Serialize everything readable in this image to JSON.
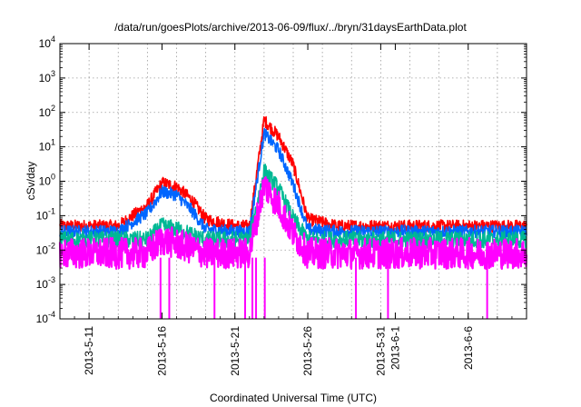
{
  "chart_data": {
    "type": "line",
    "title": "/data/run/goesPlots/archive/2013-06-09/flux/../bryn/31daysEarthData.plot",
    "xlabel": "Coordinated Universal Time (UTC)",
    "ylabel": "cSv/day",
    "y_scale": "log",
    "ylim": [
      0.0001,
      10000
    ],
    "y_ticks": [
      {
        "base": "10",
        "exp": "-4",
        "value": 0.0001
      },
      {
        "base": "10",
        "exp": "-3",
        "value": 0.001
      },
      {
        "base": "10",
        "exp": "-2",
        "value": 0.01
      },
      {
        "base": "10",
        "exp": "-1",
        "value": 0.1
      },
      {
        "base": "10",
        "exp": "0",
        "value": 1
      },
      {
        "base": "10",
        "exp": "1",
        "value": 10
      },
      {
        "base": "10",
        "exp": "2",
        "value": 100
      },
      {
        "base": "10",
        "exp": "3",
        "value": 1000
      },
      {
        "base": "10",
        "exp": "4",
        "value": 10000
      }
    ],
    "xlim": [
      "2013-05-09",
      "2013-06-10"
    ],
    "x_ticks": [
      "2013-5-11",
      "2013-5-16",
      "2013-5-21",
      "2013-5-26",
      "2013-5-31",
      "2013-6-1",
      "2013-6-6"
    ],
    "grid": true,
    "legend": "none",
    "series": [
      {
        "color": "#ff0000",
        "x": [
          "2013-05-09",
          "2013-05-13",
          "2013-05-15",
          "2013-05-16",
          "2013-05-17",
          "2013-05-18",
          "2013-05-19",
          "2013-05-21",
          "2013-05-22",
          "2013-05-23",
          "2013-05-24",
          "2013-05-25",
          "2013-05-26",
          "2013-05-28",
          "2013-06-01",
          "2013-06-06",
          "2013-06-10"
        ],
        "values": [
          0.05,
          0.05,
          0.2,
          0.9,
          0.7,
          0.3,
          0.08,
          0.05,
          0.05,
          60,
          20,
          3,
          0.08,
          0.05,
          0.05,
          0.05,
          0.05
        ]
      },
      {
        "color": "#0066ff",
        "x": [
          "2013-05-09",
          "2013-05-13",
          "2013-05-15",
          "2013-05-16",
          "2013-05-17",
          "2013-05-18",
          "2013-05-19",
          "2013-05-21",
          "2013-05-22",
          "2013-05-23",
          "2013-05-24",
          "2013-05-25",
          "2013-05-26",
          "2013-05-28",
          "2013-06-01",
          "2013-06-06",
          "2013-06-10"
        ],
        "values": [
          0.035,
          0.035,
          0.12,
          0.5,
          0.4,
          0.15,
          0.04,
          0.035,
          0.035,
          25,
          8,
          0.8,
          0.04,
          0.035,
          0.035,
          0.035,
          0.035
        ]
      },
      {
        "color": "#00b894",
        "x": [
          "2013-05-09",
          "2013-05-15",
          "2013-05-16",
          "2013-05-17",
          "2013-05-19",
          "2013-05-22",
          "2013-05-23",
          "2013-05-24",
          "2013-05-25",
          "2013-05-26",
          "2013-05-28",
          "2013-06-10"
        ],
        "values": [
          0.02,
          0.02,
          0.05,
          0.04,
          0.02,
          0.02,
          2,
          0.6,
          0.08,
          0.02,
          0.02,
          0.02
        ]
      },
      {
        "color": "#ff00ff",
        "x": [
          "2013-05-09",
          "2013-05-15",
          "2013-05-16",
          "2013-05-17",
          "2013-05-19",
          "2013-05-22",
          "2013-05-23",
          "2013-05-24",
          "2013-05-25",
          "2013-05-26",
          "2013-05-28",
          "2013-06-10"
        ],
        "values": [
          0.008,
          0.008,
          0.02,
          0.015,
          0.008,
          0.008,
          0.8,
          0.2,
          0.03,
          0.008,
          0.008,
          0.008
        ]
      }
    ]
  }
}
